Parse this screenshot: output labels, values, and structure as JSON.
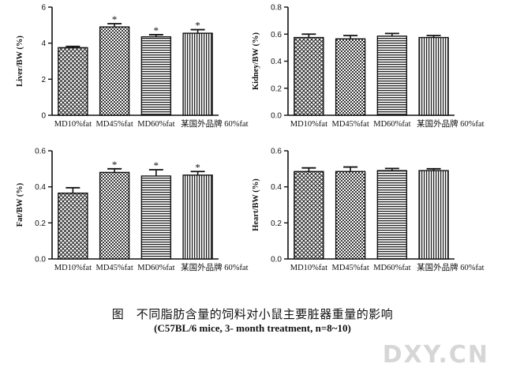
{
  "caption": {
    "title": "图　不同脂肪含量的饲料对小鼠主要脏器重量的影响",
    "subtitle": "(C57BL/6  mice, 3- month treatment, n=8~10)"
  },
  "watermark": "DXY.CN",
  "chart_data": [
    {
      "type": "bar",
      "ylabel": "Liver/BW (%)",
      "ylim": [
        0,
        6
      ],
      "yticks": [
        "0",
        "2",
        "4",
        "6"
      ],
      "categories": [
        "MD10%fat",
        "MD45%fat",
        "MD60%fat",
        "某国外品牌 60%fat"
      ],
      "values": [
        3.75,
        4.9,
        4.35,
        4.55
      ],
      "errors": [
        0.07,
        0.18,
        0.12,
        0.2
      ],
      "annotations": [
        "",
        "*",
        "*",
        "*"
      ],
      "patterns": [
        "crosshatch",
        "dots",
        "hlines",
        "vlines"
      ]
    },
    {
      "type": "bar",
      "ylabel": "Kidney/BW (%)",
      "ylim": [
        0,
        0.8
      ],
      "yticks": [
        "0.0",
        "0.2",
        "0.4",
        "0.6",
        "0.8"
      ],
      "categories": [
        "MD10%fat",
        "MD45%fat",
        "MD60%fat",
        "某国外品牌 60%fat"
      ],
      "values": [
        0.575,
        0.565,
        0.585,
        0.575
      ],
      "errors": [
        0.025,
        0.025,
        0.02,
        0.015
      ],
      "annotations": [
        "",
        "",
        "",
        ""
      ],
      "patterns": [
        "crosshatch",
        "dots",
        "hlines",
        "vlines"
      ]
    },
    {
      "type": "bar",
      "ylabel": "Fat/BW (%)",
      "ylim": [
        0,
        0.6
      ],
      "yticks": [
        "0.0",
        "0.2",
        "0.4",
        "0.6"
      ],
      "categories": [
        "MD10%fat",
        "MD45%fat",
        "MD60%fat",
        "某国外品牌 60%fat"
      ],
      "values": [
        0.365,
        0.48,
        0.46,
        0.465
      ],
      "errors": [
        0.03,
        0.02,
        0.035,
        0.02
      ],
      "annotations": [
        "",
        "*",
        "*",
        "*"
      ],
      "patterns": [
        "crosshatch",
        "dots",
        "hlines",
        "vlines"
      ]
    },
    {
      "type": "bar",
      "ylabel": "Heart/BW (%)",
      "ylim": [
        0,
        0.6
      ],
      "yticks": [
        "0.0",
        "0.2",
        "0.4",
        "0.6"
      ],
      "categories": [
        "MD10%fat",
        "MD45%fat",
        "MD60%fat",
        "某国外品牌 60%fat"
      ],
      "values": [
        0.485,
        0.485,
        0.49,
        0.49
      ],
      "errors": [
        0.02,
        0.025,
        0.012,
        0.01
      ],
      "annotations": [
        "",
        "",
        "",
        ""
      ],
      "patterns": [
        "crosshatch",
        "dots",
        "hlines",
        "vlines"
      ]
    }
  ]
}
